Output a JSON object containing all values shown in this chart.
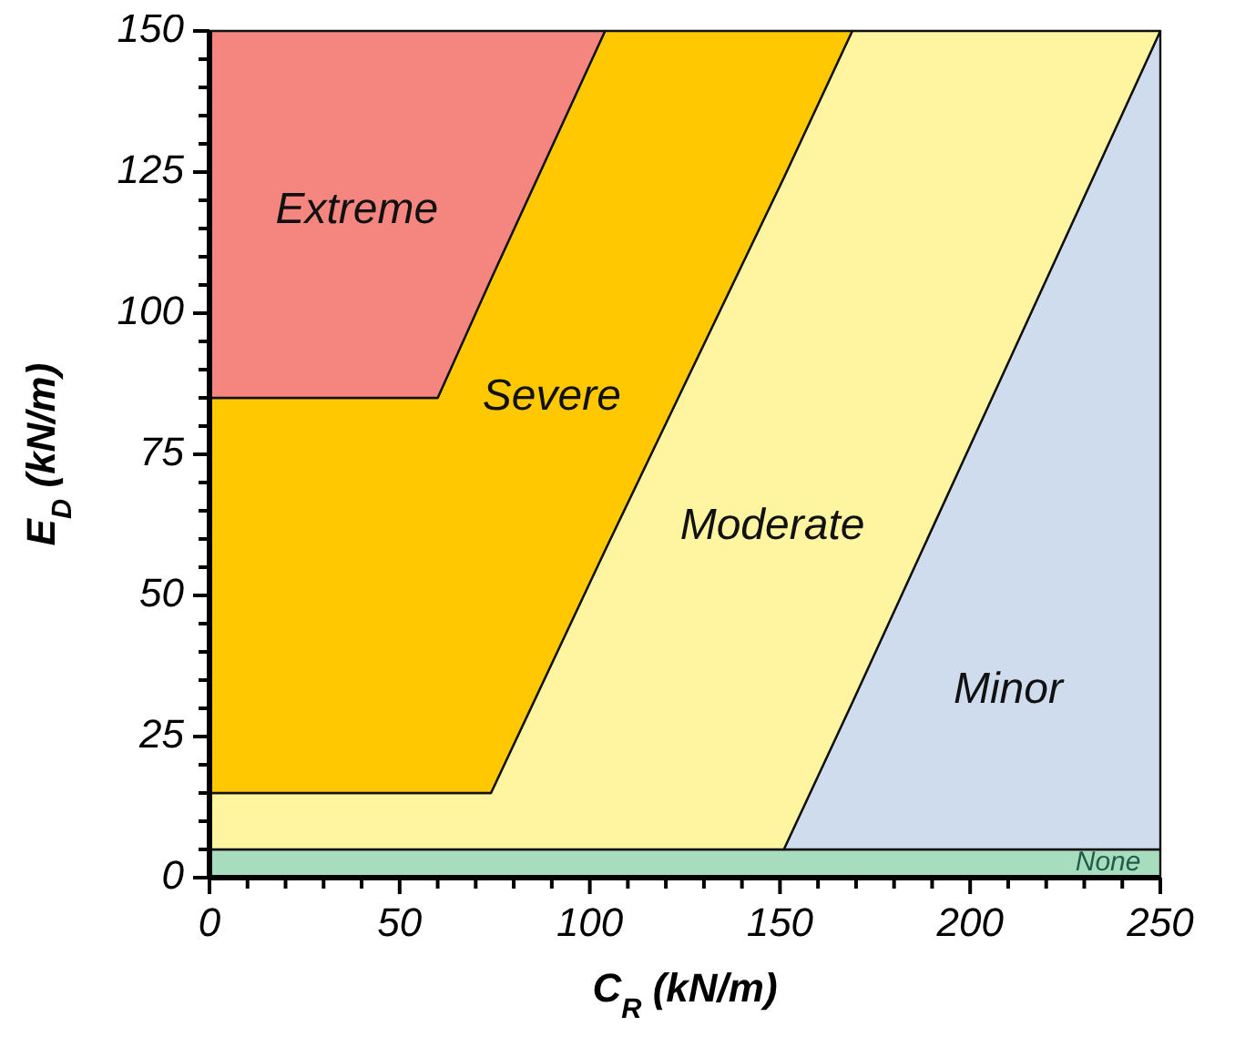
{
  "chart_data": {
    "type": "area",
    "stacked": true,
    "xlabel": "C$_{R}$ (kN/m)",
    "ylabel": "E$_{D}$ (kN/m)",
    "xlim": [
      0,
      250
    ],
    "ylim": [
      0,
      150
    ],
    "xticks": [
      0,
      {
        "value": 10,
        "label": null
      },
      {
        "value": 20,
        "label": null
      },
      {
        "value": 30,
        "label": null
      },
      {
        "value": 40,
        "label": null
      },
      50,
      {
        "value": 60,
        "label": null
      },
      {
        "value": 70,
        "label": null
      },
      {
        "value": 80,
        "label": null
      },
      {
        "value": 90,
        "label": null
      },
      100,
      {
        "value": 110,
        "label": null
      },
      {
        "value": 120,
        "label": null
      },
      {
        "value": 130,
        "label": null
      },
      {
        "value": 140,
        "label": null
      },
      150,
      {
        "value": 160,
        "label": null
      },
      {
        "value": 170,
        "label": null
      },
      {
        "value": 180,
        "label": null
      },
      {
        "value": 190,
        "label": null
      },
      200,
      {
        "value": 210,
        "label": null
      },
      {
        "value": 220,
        "label": null
      },
      {
        "value": 230,
        "label": null
      },
      {
        "value": 240,
        "label": null
      },
      250
    ],
    "yticks": [
      0,
      {
        "value": 5,
        "label": null
      },
      {
        "value": 10,
        "label": null
      },
      {
        "value": 15,
        "label": null
      },
      {
        "value": 20,
        "label": null
      },
      25,
      {
        "value": 30,
        "label": null
      },
      {
        "value": 35,
        "label": null
      },
      {
        "value": 40,
        "label": null
      },
      {
        "value": 45,
        "label": null
      },
      50,
      {
        "value": 55,
        "label": null
      },
      {
        "value": 60,
        "label": null
      },
      {
        "value": 65,
        "label": null
      },
      {
        "value": 70,
        "label": null
      },
      75,
      {
        "value": 80,
        "label": null
      },
      {
        "value": 85,
        "label": null
      },
      {
        "value": 90,
        "label": null
      },
      {
        "value": 95,
        "label": null
      },
      100,
      {
        "value": 105,
        "label": null
      },
      {
        "value": 110,
        "label": null
      },
      {
        "value": 115,
        "label": null
      },
      {
        "value": 120,
        "label": null
      },
      125,
      {
        "value": 130,
        "label": null
      },
      {
        "value": 135,
        "label": null
      },
      {
        "value": 140,
        "label": null
      },
      {
        "value": 145,
        "label": null
      },
      150
    ],
    "x": [
      0,
      60,
      74,
      104,
      151,
      169,
      250
    ],
    "series": [
      {
        "name": "None",
        "color": "#a8dcbf",
        "values": [
          5,
          5,
          5,
          5,
          5,
          5,
          5
        ]
      },
      {
        "name": "Minor",
        "color": "#cfdcee",
        "values": [
          null,
          null,
          null,
          null,
          0,
          26,
          145
        ]
      },
      {
        "name": "Moderate",
        "color": "#fff5a0",
        "values": [
          10,
          10,
          10,
          53,
          119,
          119,
          0
        ]
      },
      {
        "name": "Severe",
        "color": "#ffc800",
        "values": [
          70,
          70,
          91,
          92,
          26,
          0,
          null
        ]
      },
      {
        "name": "Extreme",
        "color": "#f4867f",
        "values": [
          65,
          65,
          44,
          0,
          null,
          null,
          null
        ]
      }
    ],
    "grid": false
  }
}
